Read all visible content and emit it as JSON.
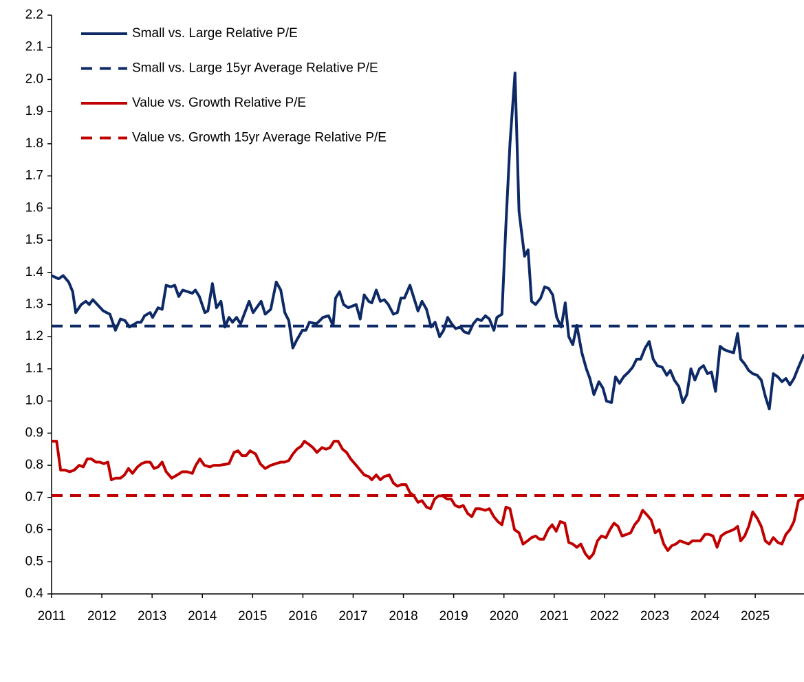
{
  "chart_data": {
    "type": "line",
    "xlim": [
      2011,
      2025.97
    ],
    "xticks": [
      2011,
      2012,
      2013,
      2014,
      2015,
      2016,
      2017,
      2018,
      2019,
      2020,
      2021,
      2022,
      2023,
      2024,
      2025
    ],
    "ylim": [
      0.4,
      2.2
    ],
    "yticks": [
      0.4,
      0.5,
      0.6,
      0.7,
      0.8,
      0.9,
      {
        "value": 1,
        "label": "1.0"
      },
      1.1,
      1.2,
      1.3,
      1.4,
      1.5,
      1.6,
      1.7,
      1.8,
      1.9,
      {
        "value": 2,
        "label": "2.0"
      },
      2.1,
      2.2
    ],
    "grid": false,
    "legend": "upper left",
    "series": [
      {
        "name": "Small vs. Large Relative P/E",
        "color": "#0d2a66",
        "dashed": false,
        "x": [
          2011.0,
          2011.14,
          2011.23,
          2011.34,
          2011.42,
          2011.48,
          2011.59,
          2011.68,
          2011.75,
          2011.82,
          2012.03,
          2012.16,
          2012.27,
          2012.37,
          2012.46,
          2012.55,
          2012.71,
          2012.78,
          2012.85,
          2012.96,
          2013.01,
          2013.12,
          2013.2,
          2013.28,
          2013.37,
          2013.45,
          2013.53,
          2013.61,
          2013.8,
          2013.86,
          2013.94,
          2014.05,
          2014.11,
          2014.2,
          2014.28,
          2014.37,
          2014.45,
          2014.53,
          2014.6,
          2014.68,
          2014.76,
          2014.93,
          2015.01,
          2015.17,
          2015.25,
          2015.36,
          2015.47,
          2015.56,
          2015.64,
          2015.72,
          2015.8,
          2015.88,
          2015.99,
          2016.06,
          2016.13,
          2016.27,
          2016.4,
          2016.51,
          2016.6,
          2016.65,
          2016.73,
          2016.81,
          2016.9,
          2016.98,
          2017.06,
          2017.14,
          2017.22,
          2017.31,
          2017.37,
          2017.46,
          2017.54,
          2017.62,
          2017.7,
          2017.8,
          2017.88,
          2017.95,
          2018.02,
          2018.13,
          2018.21,
          2018.29,
          2018.37,
          2018.46,
          2018.55,
          2018.63,
          2018.72,
          2018.8,
          2018.88,
          2018.96,
          2019.04,
          2019.13,
          2019.21,
          2019.3,
          2019.39,
          2019.47,
          2019.55,
          2019.63,
          2019.71,
          2019.8,
          2019.86,
          2019.96,
          2020.04,
          2020.12,
          2020.22,
          2020.3,
          2020.41,
          2020.48,
          2020.55,
          2020.63,
          2020.73,
          2020.81,
          2020.89,
          2020.97,
          2021.05,
          2021.14,
          2021.22,
          2021.29,
          2021.37,
          2021.45,
          2021.55,
          2021.64,
          2021.71,
          2021.79,
          2021.89,
          2021.97,
          2022.04,
          2022.14,
          2022.22,
          2022.3,
          2022.38,
          2022.48,
          2022.56,
          2022.64,
          2022.72,
          2022.81,
          2022.89,
          2022.97,
          2023.05,
          2023.15,
          2023.24,
          2023.31,
          2023.39,
          2023.48,
          2023.56,
          2023.64,
          2023.72,
          2023.8,
          2023.89,
          2023.97,
          2024.05,
          2024.13,
          2024.21,
          2024.3,
          2024.38,
          2024.46,
          2024.57,
          2024.65,
          2024.71,
          2024.79,
          2024.87,
          2024.95,
          2025.04,
          2025.12,
          2025.2,
          2025.28,
          2025.36,
          2025.45,
          2025.53,
          2025.61,
          2025.69,
          2025.77,
          2025.86,
          2025.97
        ],
        "values": [
          1.39,
          1.38,
          1.39,
          1.37,
          1.34,
          1.275,
          1.3,
          1.31,
          1.3,
          1.315,
          1.28,
          1.27,
          1.22,
          1.255,
          1.25,
          1.23,
          1.245,
          1.245,
          1.265,
          1.275,
          1.26,
          1.29,
          1.285,
          1.36,
          1.355,
          1.36,
          1.325,
          1.345,
          1.335,
          1.345,
          1.325,
          1.275,
          1.28,
          1.365,
          1.29,
          1.31,
          1.23,
          1.26,
          1.245,
          1.26,
          1.24,
          1.31,
          1.275,
          1.31,
          1.27,
          1.285,
          1.37,
          1.345,
          1.275,
          1.25,
          1.165,
          1.19,
          1.22,
          1.22,
          1.245,
          1.24,
          1.26,
          1.265,
          1.235,
          1.32,
          1.34,
          1.3,
          1.29,
          1.295,
          1.3,
          1.255,
          1.33,
          1.31,
          1.305,
          1.345,
          1.31,
          1.315,
          1.3,
          1.27,
          1.275,
          1.32,
          1.32,
          1.36,
          1.32,
          1.28,
          1.31,
          1.285,
          1.23,
          1.245,
          1.2,
          1.22,
          1.26,
          1.24,
          1.225,
          1.23,
          1.215,
          1.21,
          1.24,
          1.255,
          1.25,
          1.265,
          1.255,
          1.22,
          1.26,
          1.27,
          1.55,
          1.8,
          2.02,
          1.59,
          1.45,
          1.47,
          1.31,
          1.3,
          1.32,
          1.355,
          1.35,
          1.33,
          1.26,
          1.23,
          1.305,
          1.2,
          1.175,
          1.235,
          1.15,
          1.1,
          1.07,
          1.02,
          1.06,
          1.04,
          1.0,
          0.995,
          1.075,
          1.055,
          1.075,
          1.09,
          1.105,
          1.13,
          1.13,
          1.165,
          1.185,
          1.13,
          1.11,
          1.105,
          1.08,
          1.095,
          1.065,
          1.045,
          0.995,
          1.02,
          1.1,
          1.065,
          1.1,
          1.11,
          1.085,
          1.09,
          1.03,
          1.17,
          1.16,
          1.155,
          1.15,
          1.21,
          1.13,
          1.115,
          1.095,
          1.085,
          1.08,
          1.065,
          1.015,
          0.975,
          1.085,
          1.075,
          1.06,
          1.07,
          1.05,
          1.07,
          1.105,
          1.145
        ]
      },
      {
        "name": "Small vs. Large 15yr Average Relative P/E",
        "color": "#0d2a66",
        "dashed": true,
        "x": [
          2011,
          2025.97
        ],
        "values": [
          1.233,
          1.233
        ]
      },
      {
        "name": "Value vs. Growth Relative P/E",
        "color": "#c00000",
        "dashed": false,
        "x": [
          2011.0,
          2011.1,
          2011.18,
          2011.27,
          2011.36,
          2011.45,
          2011.55,
          2011.63,
          2011.71,
          2011.79,
          2011.88,
          2011.96,
          2012.04,
          2012.12,
          2012.19,
          2012.27,
          2012.37,
          2012.45,
          2012.53,
          2012.61,
          2012.71,
          2012.79,
          2012.87,
          2012.96,
          2013.04,
          2013.12,
          2013.2,
          2013.28,
          2013.39,
          2013.5,
          2013.6,
          2013.69,
          2013.8,
          2013.87,
          2013.95,
          2014.04,
          2014.15,
          2014.23,
          2014.34,
          2014.53,
          2014.63,
          2014.71,
          2014.79,
          2014.87,
          2014.95,
          2015.06,
          2015.15,
          2015.25,
          2015.36,
          2015.56,
          2015.64,
          2015.72,
          2015.8,
          2015.88,
          2015.97,
          2016.03,
          2016.12,
          2016.2,
          2016.28,
          2016.38,
          2016.46,
          2016.54,
          2016.62,
          2016.7,
          2016.79,
          2016.87,
          2016.95,
          2017.06,
          2017.14,
          2017.22,
          2017.31,
          2017.37,
          2017.46,
          2017.54,
          2017.62,
          2017.72,
          2017.8,
          2017.88,
          2017.96,
          2018.05,
          2018.13,
          2018.21,
          2018.29,
          2018.37,
          2018.46,
          2018.54,
          2018.62,
          2018.7,
          2018.78,
          2018.87,
          2018.95,
          2019.03,
          2019.11,
          2019.19,
          2019.28,
          2019.36,
          2019.44,
          2019.52,
          2019.63,
          2019.71,
          2019.8,
          2019.88,
          2019.96,
          2020.04,
          2020.12,
          2020.21,
          2020.3,
          2020.38,
          2020.47,
          2020.55,
          2020.63,
          2020.71,
          2020.79,
          2020.88,
          2020.96,
          2021.04,
          2021.12,
          2021.21,
          2021.29,
          2021.37,
          2021.45,
          2021.53,
          2021.62,
          2021.7,
          2021.78,
          2021.86,
          2021.94,
          2022.03,
          2022.11,
          2022.19,
          2022.27,
          2022.35,
          2022.44,
          2022.52,
          2022.6,
          2022.68,
          2022.76,
          2022.85,
          2022.93,
          2023.01,
          2023.09,
          2023.18,
          2023.26,
          2023.34,
          2023.42,
          2023.5,
          2023.59,
          2023.67,
          2023.75,
          2023.83,
          2023.91,
          2024.0,
          2024.08,
          2024.16,
          2024.24,
          2024.32,
          2024.41,
          2024.49,
          2024.57,
          2024.65,
          2024.71,
          2024.79,
          2024.87,
          2024.95,
          2025.04,
          2025.12,
          2025.2,
          2025.28,
          2025.36,
          2025.45,
          2025.53,
          2025.61,
          2025.69,
          2025.77,
          2025.86,
          2025.97
        ],
        "values": [
          0.875,
          0.875,
          0.785,
          0.785,
          0.78,
          0.785,
          0.8,
          0.795,
          0.82,
          0.82,
          0.81,
          0.81,
          0.805,
          0.81,
          0.755,
          0.76,
          0.76,
          0.77,
          0.79,
          0.775,
          0.795,
          0.805,
          0.81,
          0.81,
          0.79,
          0.795,
          0.81,
          0.78,
          0.76,
          0.77,
          0.78,
          0.78,
          0.775,
          0.8,
          0.82,
          0.8,
          0.795,
          0.8,
          0.8,
          0.805,
          0.84,
          0.845,
          0.83,
          0.83,
          0.845,
          0.835,
          0.805,
          0.79,
          0.8,
          0.81,
          0.81,
          0.815,
          0.835,
          0.85,
          0.86,
          0.875,
          0.865,
          0.855,
          0.84,
          0.855,
          0.85,
          0.855,
          0.875,
          0.875,
          0.85,
          0.84,
          0.82,
          0.8,
          0.785,
          0.77,
          0.765,
          0.755,
          0.77,
          0.755,
          0.765,
          0.77,
          0.745,
          0.735,
          0.74,
          0.74,
          0.715,
          0.705,
          0.685,
          0.69,
          0.67,
          0.665,
          0.695,
          0.705,
          0.705,
          0.695,
          0.695,
          0.675,
          0.67,
          0.675,
          0.65,
          0.64,
          0.665,
          0.665,
          0.66,
          0.665,
          0.64,
          0.625,
          0.615,
          0.67,
          0.665,
          0.6,
          0.59,
          0.555,
          0.565,
          0.575,
          0.58,
          0.57,
          0.57,
          0.6,
          0.615,
          0.595,
          0.625,
          0.62,
          0.56,
          0.555,
          0.545,
          0.555,
          0.525,
          0.51,
          0.525,
          0.565,
          0.58,
          0.575,
          0.6,
          0.62,
          0.61,
          0.58,
          0.585,
          0.59,
          0.615,
          0.63,
          0.66,
          0.645,
          0.63,
          0.59,
          0.6,
          0.555,
          0.535,
          0.55,
          0.555,
          0.565,
          0.56,
          0.555,
          0.565,
          0.565,
          0.565,
          0.585,
          0.585,
          0.58,
          0.545,
          0.58,
          0.59,
          0.595,
          0.6,
          0.61,
          0.565,
          0.58,
          0.61,
          0.655,
          0.635,
          0.61,
          0.565,
          0.555,
          0.575,
          0.56,
          0.555,
          0.585,
          0.6,
          0.625,
          0.69,
          0.7
        ]
      },
      {
        "name": "Value vs. Growth 15yr Average Relative P/E",
        "color": "#c00000",
        "dashed": true,
        "x": [
          2011,
          2025.97
        ],
        "values": [
          0.706,
          0.706
        ]
      }
    ]
  }
}
